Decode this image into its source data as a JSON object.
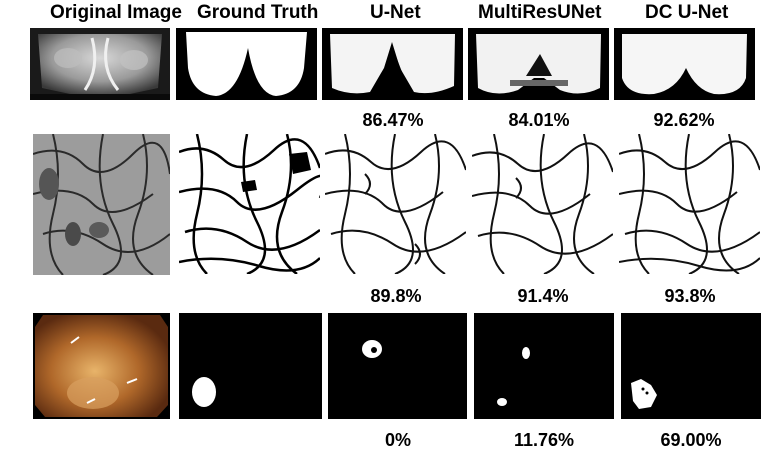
{
  "headers": {
    "original": "Original Image",
    "ground_truth": "Ground Truth",
    "unet": "U-Net",
    "multiresunet": "MultiResUNet",
    "dcunet": "DC U-Net"
  },
  "rows": [
    {
      "scores": {
        "unet": "86.47%",
        "multiresunet": "84.01%",
        "dcunet": "92.62%"
      }
    },
    {
      "scores": {
        "unet": "89.8%",
        "multiresunet": "91.4%",
        "dcunet": "93.8%"
      }
    },
    {
      "scores": {
        "unet": "0%",
        "multiresunet": "11.76%",
        "dcunet": "69.00%"
      }
    }
  ]
}
